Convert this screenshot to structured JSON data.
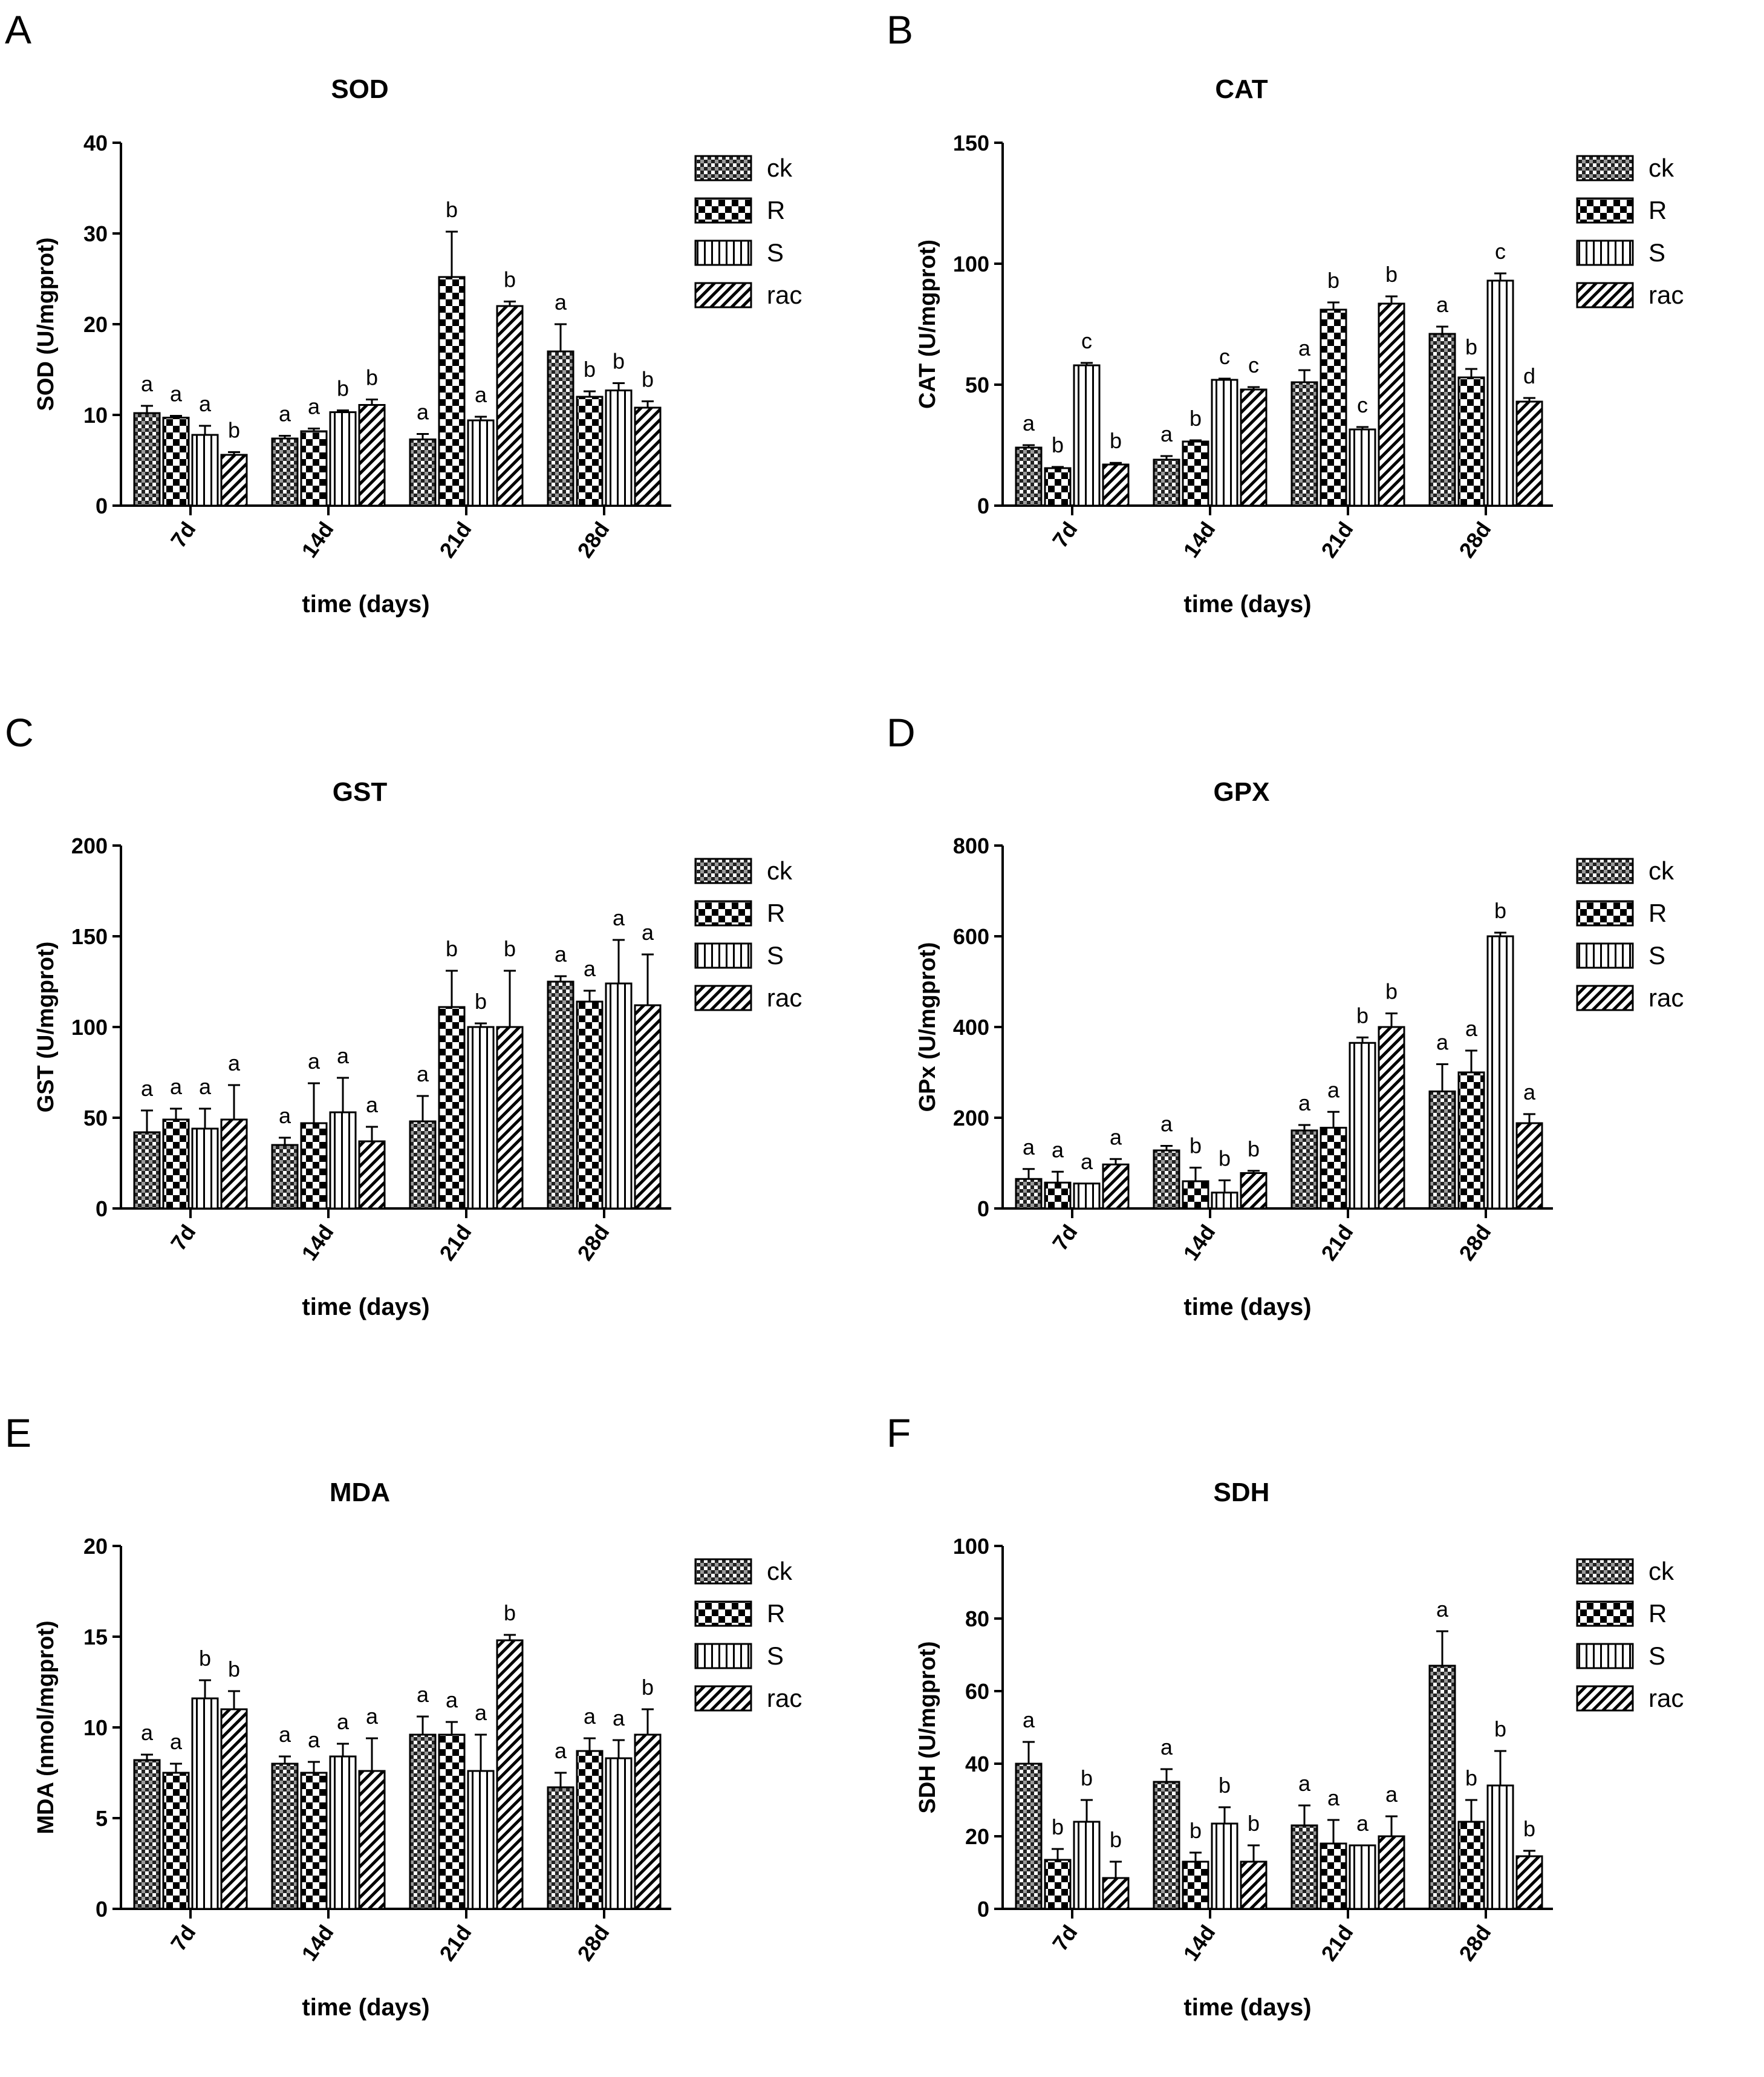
{
  "legend": [
    {
      "label": "ck",
      "pattern": "checker-small"
    },
    {
      "label": "R",
      "pattern": "checker-big"
    },
    {
      "label": "S",
      "pattern": "vstripes"
    },
    {
      "label": "rac",
      "pattern": "diag"
    }
  ],
  "chart_data": [
    {
      "panel": "A",
      "type": "bar",
      "title": "SOD",
      "xlabel": "time (days)",
      "ylabel": "SOD (U/mgprot)",
      "ylim": [
        0,
        40
      ],
      "yticks": [
        0,
        10,
        20,
        30,
        40
      ],
      "categories": [
        "7d",
        "14d",
        "21d",
        "28d"
      ],
      "series": [
        {
          "name": "ck",
          "values": [
            10.2,
            7.4,
            7.3,
            17.0
          ],
          "errors": [
            0.8,
            0.3,
            0.6,
            3.0
          ],
          "letters": [
            "a",
            "a",
            "a",
            "a"
          ]
        },
        {
          "name": "R",
          "values": [
            9.7,
            8.2,
            25.2,
            12.0
          ],
          "errors": [
            0.2,
            0.3,
            5.0,
            0.6
          ],
          "letters": [
            "a",
            "a",
            "b",
            "b"
          ]
        },
        {
          "name": "S",
          "values": [
            7.8,
            10.3,
            9.4,
            12.7
          ],
          "errors": [
            1.0,
            0.2,
            0.4,
            0.8
          ],
          "letters": [
            "a",
            "b",
            "a",
            "b"
          ]
        },
        {
          "name": "rac",
          "values": [
            5.6,
            11.1,
            22.0,
            10.8
          ],
          "errors": [
            0.3,
            0.6,
            0.5,
            0.7
          ],
          "letters": [
            "b",
            "b",
            "b",
            "b"
          ]
        }
      ]
    },
    {
      "panel": "B",
      "type": "bar",
      "title": "CAT",
      "xlabel": "time (days)",
      "ylabel": "CAT (U/mgprot)",
      "ylim": [
        0,
        150
      ],
      "yticks": [
        0,
        50,
        100,
        150
      ],
      "categories": [
        "7d",
        "14d",
        "21d",
        "28d"
      ],
      "series": [
        {
          "name": "ck",
          "values": [
            24,
            19,
            51,
            71
          ],
          "errors": [
            1,
            1.5,
            5,
            3
          ],
          "letters": [
            "a",
            "a",
            "a",
            "a"
          ]
        },
        {
          "name": "R",
          "values": [
            15.5,
            26.5,
            81,
            53
          ],
          "errors": [
            0.5,
            0.5,
            3,
            3.5
          ],
          "letters": [
            "b",
            "b",
            "b",
            "b"
          ]
        },
        {
          "name": "S",
          "values": [
            58,
            52,
            31.5,
            93
          ],
          "errors": [
            1,
            0.5,
            1,
            3
          ],
          "letters": [
            "c",
            "c",
            "c",
            "c"
          ]
        },
        {
          "name": "rac",
          "values": [
            17,
            48,
            83.5,
            43
          ],
          "errors": [
            0.7,
            1,
            3,
            1.5
          ],
          "letters": [
            "b",
            "c",
            "b",
            "d"
          ]
        }
      ]
    },
    {
      "panel": "C",
      "type": "bar",
      "title": "GST",
      "xlabel": "time (days)",
      "ylabel": "GST (U/mgprot)",
      "ylim": [
        0,
        200
      ],
      "yticks": [
        0,
        50,
        100,
        150,
        200
      ],
      "categories": [
        "7d",
        "14d",
        "21d",
        "28d"
      ],
      "series": [
        {
          "name": "ck",
          "values": [
            42,
            35,
            48,
            125
          ],
          "errors": [
            12,
            4,
            14,
            3
          ],
          "letters": [
            "a",
            "a",
            "a",
            "a"
          ]
        },
        {
          "name": "R",
          "values": [
            49,
            47,
            111,
            114
          ],
          "errors": [
            6,
            22,
            20,
            6
          ],
          "letters": [
            "a",
            "a",
            "b",
            "a"
          ]
        },
        {
          "name": "S",
          "values": [
            44,
            53,
            100,
            124
          ],
          "errors": [
            11,
            19,
            2,
            24
          ],
          "letters": [
            "a",
            "a",
            "b",
            "a"
          ]
        },
        {
          "name": "rac",
          "values": [
            49,
            37,
            100,
            112
          ],
          "errors": [
            19,
            8,
            31,
            28
          ],
          "letters": [
            "a",
            "a",
            "b",
            "a"
          ]
        }
      ]
    },
    {
      "panel": "D",
      "type": "bar",
      "title": "GPX",
      "xlabel": "time (days)",
      "ylabel": "GPx (U/mgprot)",
      "ylim": [
        0,
        800
      ],
      "yticks": [
        0,
        200,
        400,
        600,
        800
      ],
      "categories": [
        "7d",
        "14d",
        "21d",
        "28d"
      ],
      "series": [
        {
          "name": "ck",
          "values": [
            65,
            128,
            172,
            258
          ],
          "errors": [
            22,
            10,
            12,
            60
          ],
          "letters": [
            "a",
            "a",
            "a",
            "a"
          ]
        },
        {
          "name": "R",
          "values": [
            57,
            60,
            178,
            300
          ],
          "errors": [
            24,
            30,
            35,
            48
          ],
          "letters": [
            "a",
            "b",
            "a",
            "a"
          ]
        },
        {
          "name": "S",
          "values": [
            55,
            35,
            365,
            600
          ],
          "errors": [
            0,
            27,
            12,
            8
          ],
          "letters": [
            "a",
            "b",
            "b",
            "b"
          ]
        },
        {
          "name": "rac",
          "values": [
            97,
            78,
            400,
            188
          ],
          "errors": [
            12,
            5,
            30,
            20
          ],
          "letters": [
            "a",
            "b",
            "b",
            "a"
          ]
        }
      ]
    },
    {
      "panel": "E",
      "type": "bar",
      "title": "MDA",
      "xlabel": "time (days)",
      "ylabel": "MDA (nmol/mgprot)",
      "ylim": [
        0,
        20
      ],
      "yticks": [
        0,
        5,
        10,
        15,
        20
      ],
      "categories": [
        "7d",
        "14d",
        "21d",
        "28d"
      ],
      "series": [
        {
          "name": "ck",
          "values": [
            8.2,
            8.0,
            9.6,
            6.7
          ],
          "errors": [
            0.3,
            0.4,
            1.0,
            0.8
          ],
          "letters": [
            "a",
            "a",
            "a",
            "a"
          ]
        },
        {
          "name": "R",
          "values": [
            7.5,
            7.5,
            9.6,
            8.7
          ],
          "errors": [
            0.5,
            0.6,
            0.7,
            0.7
          ],
          "letters": [
            "a",
            "a",
            "a",
            "a"
          ]
        },
        {
          "name": "S",
          "values": [
            11.6,
            8.4,
            7.6,
            8.3
          ],
          "errors": [
            1.0,
            0.7,
            2.0,
            1.0
          ],
          "letters": [
            "b",
            "a",
            "a",
            "a"
          ]
        },
        {
          "name": "rac",
          "values": [
            11.0,
            7.6,
            14.8,
            9.6
          ],
          "errors": [
            1.0,
            1.8,
            0.3,
            1.4
          ],
          "letters": [
            "b",
            "a",
            "b",
            "b"
          ]
        }
      ]
    },
    {
      "panel": "F",
      "type": "bar",
      "title": "SDH",
      "xlabel": "time (days)",
      "ylabel": "SDH (U/mgprot)",
      "ylim": [
        0,
        100
      ],
      "yticks": [
        0,
        20,
        40,
        60,
        80,
        100
      ],
      "categories": [
        "7d",
        "14d",
        "21d",
        "28d"
      ],
      "series": [
        {
          "name": "ck",
          "values": [
            40,
            35,
            23,
            67
          ],
          "errors": [
            6,
            3.5,
            5.5,
            9.5
          ],
          "letters": [
            "a",
            "a",
            "a",
            "a"
          ]
        },
        {
          "name": "R",
          "values": [
            13.5,
            13,
            18,
            24
          ],
          "errors": [
            3,
            2.5,
            6.5,
            6
          ],
          "letters": [
            "b",
            "b",
            "a",
            "b"
          ]
        },
        {
          "name": "S",
          "values": [
            24,
            23.5,
            17.5,
            34
          ],
          "errors": [
            6,
            4.5,
            0,
            9.5
          ],
          "letters": [
            "b",
            "b",
            "a",
            "b"
          ]
        },
        {
          "name": "rac",
          "values": [
            8.5,
            13,
            20,
            14.5
          ],
          "errors": [
            4.5,
            4.5,
            5.5,
            1.5
          ],
          "letters": [
            "b",
            "b",
            "a",
            "b"
          ]
        }
      ]
    }
  ]
}
